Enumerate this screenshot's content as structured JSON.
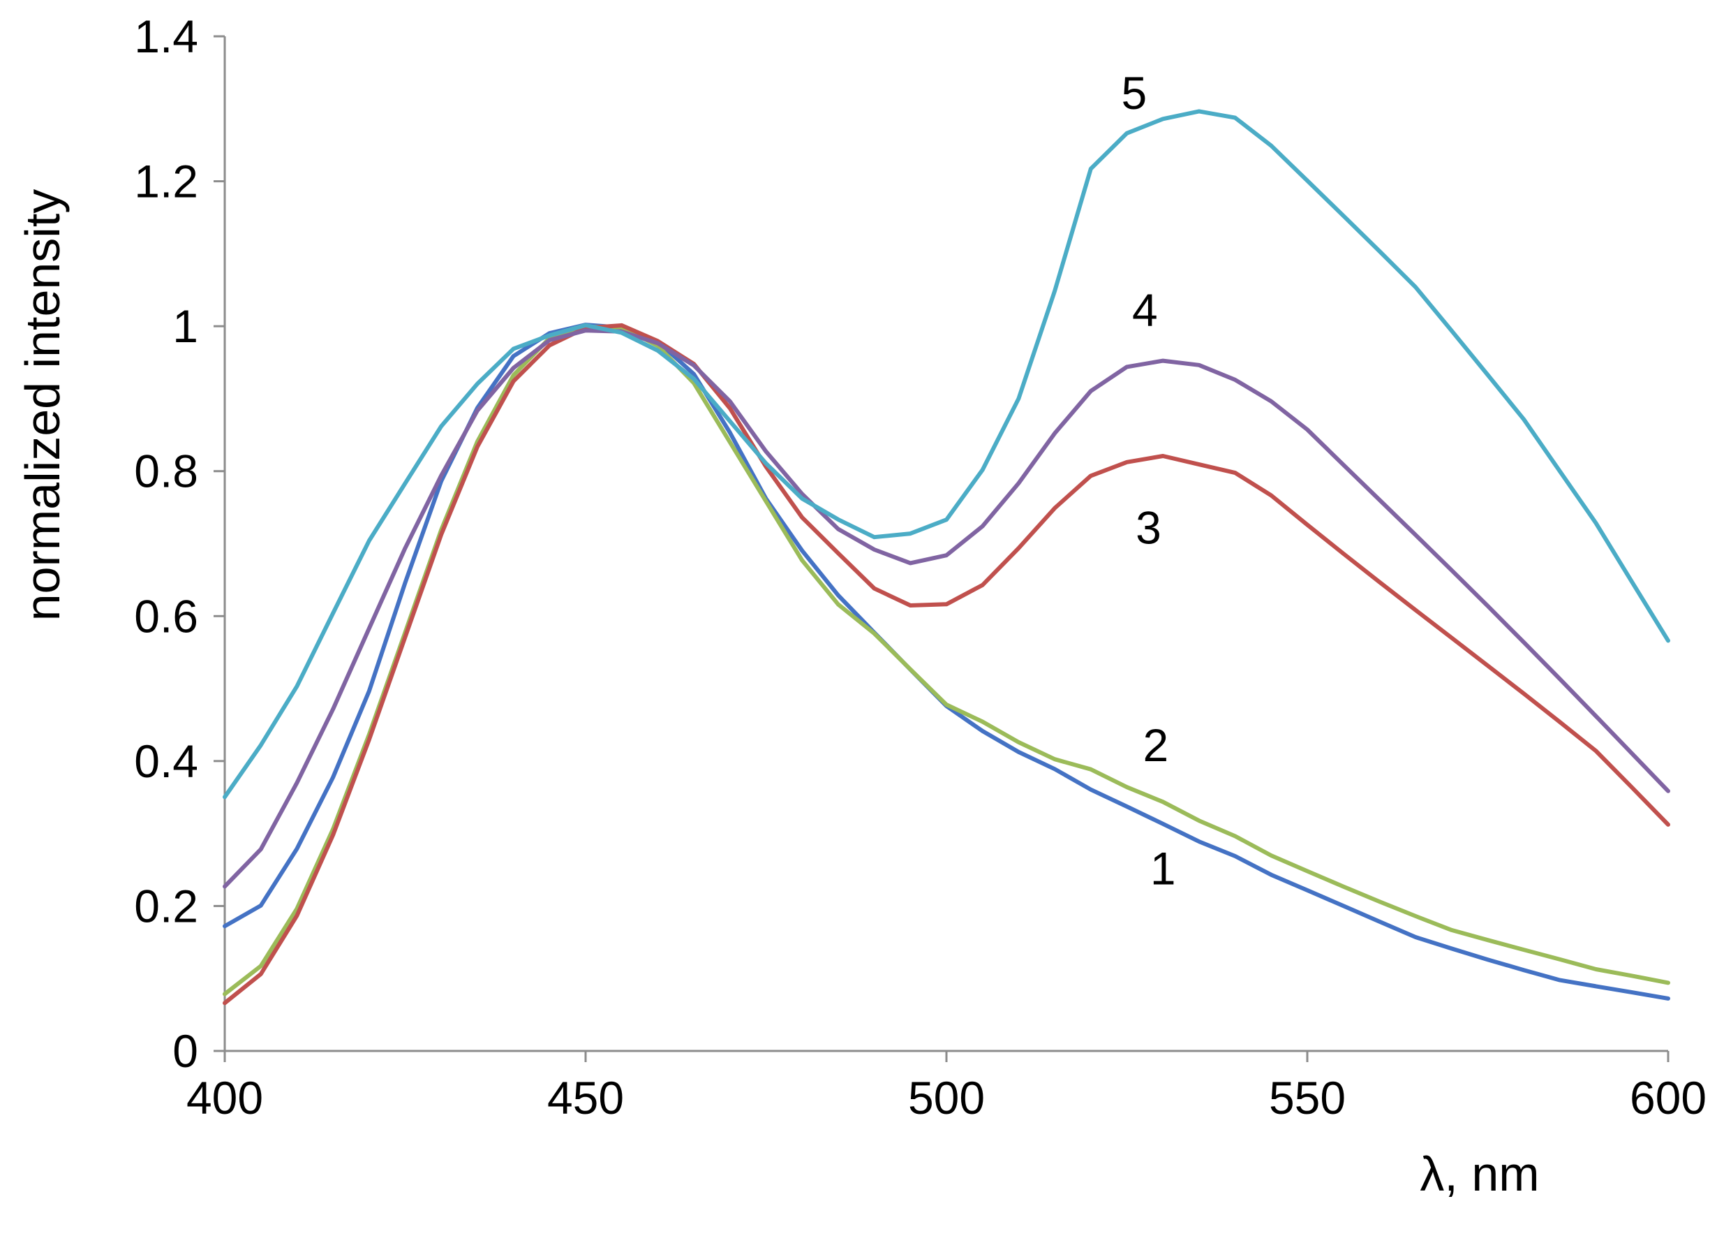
{
  "chart_data": {
    "type": "line",
    "title": "",
    "xlabel": "λ, nm",
    "ylabel": "normalized intensity",
    "xlim": [
      400,
      600
    ],
    "ylim": [
      0,
      1.4
    ],
    "xticks": [
      400,
      450,
      500,
      550,
      600
    ],
    "xtick_labels": [
      "400",
      "450",
      "500",
      "550",
      "600"
    ],
    "yticks": [
      0,
      0.2,
      0.4,
      0.6,
      0.8,
      1.0,
      1.2,
      1.4
    ],
    "ytick_labels": [
      "0",
      "0.2",
      "0.4",
      "0.6",
      "0.8",
      "1",
      "1.2",
      "1.4"
    ],
    "grid": false,
    "legend": "none",
    "series": [
      {
        "name": "1",
        "label": "1",
        "label_at": [
          530,
          0.23
        ],
        "color": "#4472c4",
        "x": [
          400,
          405,
          410,
          415,
          420,
          425,
          430,
          435,
          440,
          445,
          450,
          455,
          460,
          465,
          470,
          475,
          480,
          485,
          490,
          495,
          500,
          505,
          510,
          515,
          520,
          525,
          530,
          535,
          540,
          545,
          550,
          555,
          560,
          565,
          570,
          575,
          580,
          585,
          590,
          595,
          600
        ],
        "values": [
          0.17,
          0.2,
          0.28,
          0.38,
          0.5,
          0.65,
          0.79,
          0.89,
          0.96,
          0.99,
          1.0,
          0.995,
          0.975,
          0.93,
          0.85,
          0.76,
          0.69,
          0.63,
          0.58,
          0.53,
          0.48,
          0.445,
          0.415,
          0.39,
          0.36,
          0.335,
          0.31,
          0.285,
          0.265,
          0.24,
          0.22,
          0.2,
          0.18,
          0.16,
          0.145,
          0.13,
          0.115,
          0.1,
          0.09,
          0.08,
          0.07
        ]
      },
      {
        "name": "2",
        "label": "2",
        "label_at": [
          529,
          0.4
        ],
        "color": "#9bbb59",
        "x": [
          400,
          405,
          410,
          415,
          420,
          425,
          430,
          435,
          440,
          445,
          450,
          455,
          460,
          465,
          470,
          475,
          480,
          485,
          490,
          495,
          500,
          505,
          510,
          515,
          520,
          525,
          530,
          535,
          540,
          545,
          550,
          555,
          560,
          565,
          570,
          575,
          580,
          585,
          590,
          595,
          600
        ],
        "values": [
          0.08,
          0.12,
          0.2,
          0.31,
          0.44,
          0.58,
          0.72,
          0.84,
          0.93,
          0.98,
          0.995,
          0.995,
          0.97,
          0.92,
          0.84,
          0.76,
          0.68,
          0.62,
          0.58,
          0.53,
          0.48,
          0.455,
          0.425,
          0.4,
          0.385,
          0.36,
          0.34,
          0.315,
          0.295,
          0.27,
          0.25,
          0.23,
          0.21,
          0.19,
          0.17,
          0.155,
          0.14,
          0.125,
          0.11,
          0.1,
          0.09
        ]
      },
      {
        "name": "3",
        "label": "3",
        "label_at": [
          528,
          0.7
        ],
        "color": "#c0504d",
        "x": [
          400,
          405,
          410,
          415,
          420,
          425,
          430,
          435,
          440,
          445,
          450,
          455,
          460,
          465,
          470,
          475,
          480,
          485,
          490,
          495,
          500,
          505,
          510,
          515,
          520,
          525,
          530,
          535,
          540,
          545,
          550,
          555,
          560,
          565,
          570,
          575,
          580,
          585,
          590,
          595,
          600
        ],
        "values": [
          0.07,
          0.11,
          0.19,
          0.3,
          0.43,
          0.57,
          0.71,
          0.83,
          0.92,
          0.97,
          0.995,
          1.0,
          0.98,
          0.95,
          0.89,
          0.81,
          0.74,
          0.69,
          0.64,
          0.615,
          0.615,
          0.64,
          0.69,
          0.745,
          0.79,
          0.81,
          0.82,
          0.81,
          0.8,
          0.77,
          0.73,
          0.69,
          0.65,
          0.61,
          0.57,
          0.53,
          0.49,
          0.45,
          0.41,
          0.36,
          0.31
        ]
      },
      {
        "name": "4",
        "label": "4",
        "label_at": [
          527.5,
          1.0
        ],
        "color": "#8064a2",
        "x": [
          400,
          405,
          410,
          415,
          420,
          425,
          430,
          435,
          440,
          445,
          450,
          455,
          460,
          465,
          470,
          475,
          480,
          485,
          490,
          495,
          500,
          505,
          510,
          515,
          520,
          525,
          530,
          535,
          540,
          545,
          550,
          555,
          560,
          565,
          570,
          575,
          580,
          585,
          590,
          595,
          600
        ],
        "values": [
          0.23,
          0.28,
          0.37,
          0.47,
          0.58,
          0.69,
          0.79,
          0.88,
          0.94,
          0.98,
          0.995,
          0.995,
          0.98,
          0.95,
          0.9,
          0.83,
          0.77,
          0.72,
          0.69,
          0.67,
          0.68,
          0.72,
          0.78,
          0.85,
          0.91,
          0.945,
          0.955,
          0.95,
          0.93,
          0.9,
          0.86,
          0.81,
          0.76,
          0.71,
          0.66,
          0.61,
          0.56,
          0.51,
          0.46,
          0.41,
          0.36
        ]
      },
      {
        "name": "5",
        "label": "5",
        "label_at": [
          526,
          1.3
        ],
        "color": "#4bacc6",
        "x": [
          400,
          405,
          410,
          415,
          420,
          425,
          430,
          435,
          440,
          445,
          450,
          455,
          460,
          465,
          470,
          475,
          480,
          485,
          490,
          495,
          500,
          505,
          510,
          515,
          520,
          525,
          530,
          535,
          540,
          545,
          550,
          555,
          560,
          565,
          570,
          575,
          580,
          585,
          590,
          595,
          600
        ],
        "values": [
          0.35,
          0.42,
          0.5,
          0.6,
          0.7,
          0.78,
          0.86,
          0.92,
          0.97,
          0.99,
          1.005,
          0.995,
          0.97,
          0.93,
          0.87,
          0.81,
          0.76,
          0.73,
          0.705,
          0.71,
          0.73,
          0.8,
          0.9,
          1.05,
          1.22,
          1.27,
          1.29,
          1.3,
          1.29,
          1.25,
          1.2,
          1.15,
          1.1,
          1.05,
          0.99,
          0.93,
          0.87,
          0.8,
          0.73,
          0.65,
          0.57
        ]
      }
    ]
  }
}
